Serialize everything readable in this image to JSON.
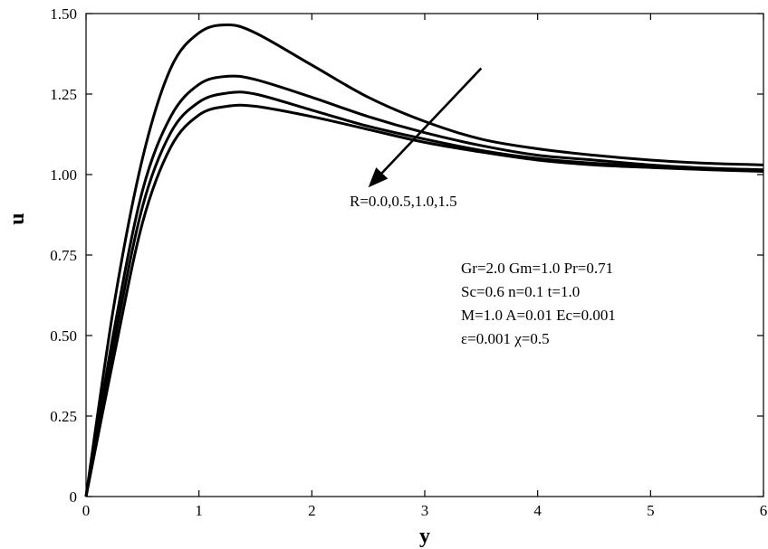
{
  "chart_data": {
    "type": "line",
    "xlabel": "y",
    "ylabel": "u",
    "xlim": [
      0,
      6
    ],
    "ylim": [
      0,
      1.5
    ],
    "xticks": [
      "0",
      "1",
      "2",
      "3",
      "4",
      "5",
      "6"
    ],
    "yticks": [
      "0",
      "0.25",
      "0.50",
      "0.75",
      "1.00",
      "1.25",
      "1.50"
    ],
    "grid": false,
    "series": [
      {
        "x": [
          0,
          0.25,
          0.5,
          0.75,
          1.0,
          1.25,
          1.5,
          2.0,
          2.5,
          3.0,
          3.5,
          4.0,
          4.5,
          5.0,
          5.5,
          6.0
        ],
        "values": [
          0,
          0.6,
          1.05,
          1.33,
          1.44,
          1.465,
          1.44,
          1.34,
          1.24,
          1.165,
          1.11,
          1.08,
          1.06,
          1.045,
          1.035,
          1.03
        ]
      },
      {
        "x": [
          0,
          0.25,
          0.5,
          0.75,
          1.0,
          1.25,
          1.5,
          2.0,
          2.5,
          3.0,
          3.5,
          4.0,
          4.5,
          5.0,
          5.5,
          6.0
        ],
        "values": [
          0,
          0.52,
          0.95,
          1.18,
          1.28,
          1.305,
          1.295,
          1.24,
          1.18,
          1.13,
          1.09,
          1.06,
          1.045,
          1.03,
          1.02,
          1.015
        ]
      },
      {
        "x": [
          0,
          0.25,
          0.5,
          0.75,
          1.0,
          1.25,
          1.5,
          2.0,
          2.5,
          3.0,
          3.5,
          4.0,
          4.5,
          5.0,
          5.5,
          6.0
        ],
        "values": [
          0,
          0.48,
          0.9,
          1.13,
          1.225,
          1.253,
          1.25,
          1.2,
          1.15,
          1.11,
          1.075,
          1.05,
          1.035,
          1.025,
          1.018,
          1.013
        ]
      },
      {
        "x": [
          0,
          0.25,
          0.5,
          0.75,
          1.0,
          1.25,
          1.5,
          2.0,
          2.5,
          3.0,
          3.5,
          4.0,
          4.5,
          5.0,
          5.5,
          6.0
        ],
        "values": [
          0,
          0.44,
          0.85,
          1.085,
          1.185,
          1.212,
          1.212,
          1.18,
          1.14,
          1.1,
          1.07,
          1.045,
          1.03,
          1.022,
          1.015,
          1.01
        ]
      }
    ],
    "arrow": {
      "from": [
        3.5,
        1.33
      ],
      "to": [
        2.5,
        0.96
      ]
    },
    "annotations": {
      "arrow_label": "R=0.0,0.5,1.0,1.5",
      "params": [
        "Gr=2.0  Gm=1.0 Pr=0.71",
        "Sc=0.6  n=0.1     t=1.0",
        "M=1.0    A=0.01  Ec=0.001",
        "ε=0.001    χ=0.5"
      ]
    }
  }
}
